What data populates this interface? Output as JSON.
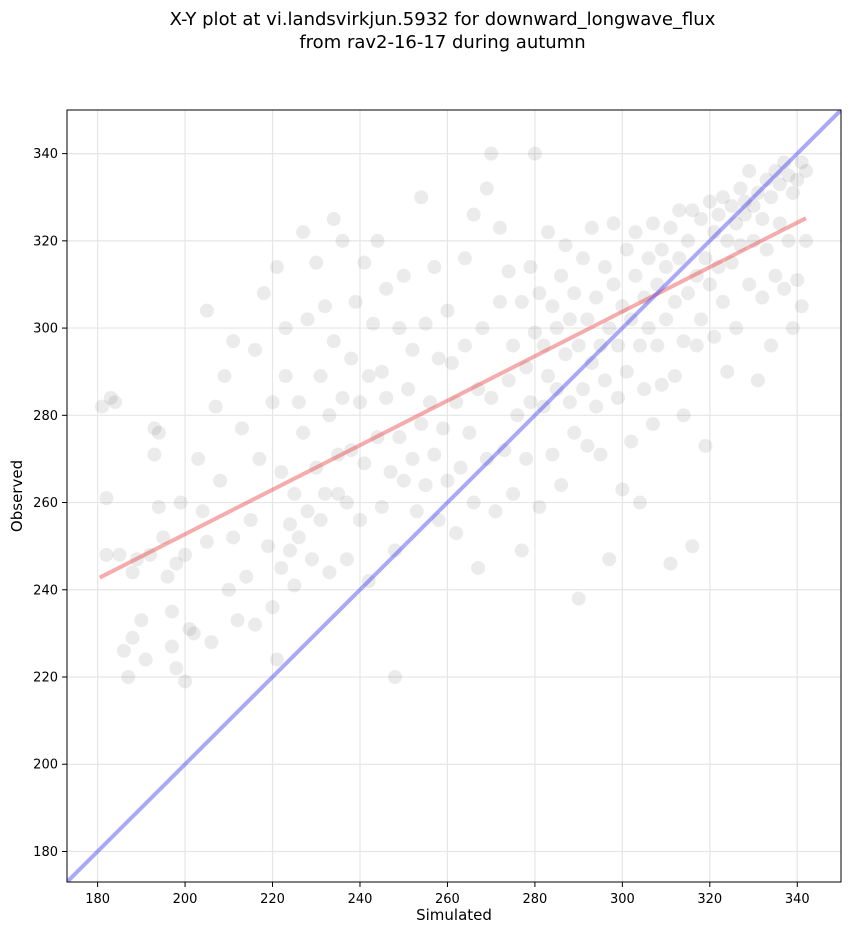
{
  "chart_data": {
    "type": "scatter",
    "title": "X-Y plot at vi.landsvirkjun.5932 for downward_longwave_flux",
    "subtitle": "from rav2-16-17 during autumn",
    "xlabel": "Simulated",
    "ylabel": "Observed",
    "xlim": [
      173,
      350
    ],
    "ylim": [
      173,
      350
    ],
    "xticks": [
      180,
      200,
      220,
      240,
      260,
      280,
      300,
      320,
      340
    ],
    "yticks": [
      180,
      200,
      220,
      240,
      260,
      280,
      300,
      320,
      340
    ],
    "grid": true,
    "point_color": "#000000",
    "point_alpha": 0.08,
    "fit_line": {
      "x": [
        180.5,
        342
      ],
      "y": [
        242.8,
        325.2
      ],
      "color": "#e8484a"
    },
    "identity_line": {
      "x": [
        173,
        350
      ],
      "y": [
        173,
        350
      ],
      "color": "#4040f0"
    },
    "points": [
      [
        181,
        282
      ],
      [
        182,
        248
      ],
      [
        182,
        261
      ],
      [
        183,
        284
      ],
      [
        184,
        283
      ],
      [
        185,
        248
      ],
      [
        186,
        226
      ],
      [
        187,
        220
      ],
      [
        188,
        229
      ],
      [
        188,
        244
      ],
      [
        189,
        247
      ],
      [
        190,
        233
      ],
      [
        191,
        224
      ],
      [
        192,
        248
      ],
      [
        193,
        271
      ],
      [
        193,
        277
      ],
      [
        194,
        276
      ],
      [
        194,
        259
      ],
      [
        195,
        252
      ],
      [
        196,
        243
      ],
      [
        197,
        235
      ],
      [
        197,
        227
      ],
      [
        198,
        222
      ],
      [
        198,
        246
      ],
      [
        199,
        260
      ],
      [
        200,
        248
      ],
      [
        200,
        219
      ],
      [
        201,
        231
      ],
      [
        202,
        230
      ],
      [
        203,
        270
      ],
      [
        204,
        258
      ],
      [
        205,
        251
      ],
      [
        205,
        304
      ],
      [
        206,
        228
      ],
      [
        207,
        282
      ],
      [
        208,
        265
      ],
      [
        209,
        289
      ],
      [
        210,
        240
      ],
      [
        211,
        252
      ],
      [
        211,
        297
      ],
      [
        212,
        233
      ],
      [
        213,
        277
      ],
      [
        214,
        243
      ],
      [
        215,
        256
      ],
      [
        216,
        295
      ],
      [
        216,
        232
      ],
      [
        217,
        270
      ],
      [
        218,
        308
      ],
      [
        219,
        250
      ],
      [
        220,
        236
      ],
      [
        220,
        283
      ],
      [
        221,
        224
      ],
      [
        221,
        314
      ],
      [
        222,
        267
      ],
      [
        222,
        245
      ],
      [
        223,
        300
      ],
      [
        223,
        289
      ],
      [
        224,
        255
      ],
      [
        224,
        249
      ],
      [
        225,
        262
      ],
      [
        225,
        241
      ],
      [
        226,
        252
      ],
      [
        226,
        283
      ],
      [
        227,
        322
      ],
      [
        227,
        276
      ],
      [
        228,
        258
      ],
      [
        228,
        302
      ],
      [
        229,
        247
      ],
      [
        230,
        315
      ],
      [
        230,
        268
      ],
      [
        231,
        289
      ],
      [
        231,
        256
      ],
      [
        232,
        305
      ],
      [
        232,
        262
      ],
      [
        233,
        280
      ],
      [
        233,
        244
      ],
      [
        234,
        325
      ],
      [
        234,
        297
      ],
      [
        235,
        271
      ],
      [
        235,
        262
      ],
      [
        236,
        284
      ],
      [
        236,
        320
      ],
      [
        237,
        247
      ],
      [
        237,
        260
      ],
      [
        238,
        272
      ],
      [
        238,
        293
      ],
      [
        239,
        306
      ],
      [
        240,
        256
      ],
      [
        240,
        283
      ],
      [
        241,
        315
      ],
      [
        241,
        269
      ],
      [
        242,
        289
      ],
      [
        242,
        242
      ],
      [
        243,
        301
      ],
      [
        244,
        275
      ],
      [
        244,
        320
      ],
      [
        245,
        259
      ],
      [
        245,
        290
      ],
      [
        246,
        284
      ],
      [
        246,
        309
      ],
      [
        247,
        267
      ],
      [
        248,
        249
      ],
      [
        248,
        220
      ],
      [
        249,
        300
      ],
      [
        249,
        275
      ],
      [
        250,
        312
      ],
      [
        250,
        265
      ],
      [
        251,
        286
      ],
      [
        252,
        295
      ],
      [
        252,
        270
      ],
      [
        253,
        258
      ],
      [
        254,
        278
      ],
      [
        254,
        330
      ],
      [
        255,
        301
      ],
      [
        255,
        264
      ],
      [
        256,
        283
      ],
      [
        257,
        314
      ],
      [
        257,
        271
      ],
      [
        258,
        293
      ],
      [
        258,
        256
      ],
      [
        259,
        277
      ],
      [
        260,
        304
      ],
      [
        260,
        265
      ],
      [
        261,
        292
      ],
      [
        262,
        253
      ],
      [
        262,
        283
      ],
      [
        263,
        268
      ],
      [
        264,
        316
      ],
      [
        264,
        296
      ],
      [
        265,
        276
      ],
      [
        266,
        260
      ],
      [
        266,
        326
      ],
      [
        267,
        286
      ],
      [
        267,
        245
      ],
      [
        268,
        300
      ],
      [
        269,
        270
      ],
      [
        269,
        332
      ],
      [
        270,
        340
      ],
      [
        270,
        284
      ],
      [
        271,
        258
      ],
      [
        272,
        306
      ],
      [
        272,
        323
      ],
      [
        273,
        272
      ],
      [
        274,
        288
      ],
      [
        274,
        313
      ],
      [
        275,
        296
      ],
      [
        275,
        262
      ],
      [
        276,
        280
      ],
      [
        277,
        249
      ],
      [
        277,
        306
      ],
      [
        278,
        291
      ],
      [
        278,
        270
      ],
      [
        279,
        314
      ],
      [
        279,
        283
      ],
      [
        280,
        299
      ],
      [
        280,
        340
      ],
      [
        281,
        259
      ],
      [
        281,
        308
      ],
      [
        282,
        282
      ],
      [
        282,
        296
      ],
      [
        283,
        322
      ],
      [
        283,
        289
      ],
      [
        284,
        271
      ],
      [
        284,
        305
      ],
      [
        285,
        286
      ],
      [
        285,
        300
      ],
      [
        286,
        264
      ],
      [
        286,
        312
      ],
      [
        287,
        294
      ],
      [
        287,
        319
      ],
      [
        288,
        283
      ],
      [
        288,
        302
      ],
      [
        289,
        276
      ],
      [
        289,
        308
      ],
      [
        290,
        238
      ],
      [
        290,
        296
      ],
      [
        291,
        286
      ],
      [
        291,
        316
      ],
      [
        292,
        302
      ],
      [
        292,
        273
      ],
      [
        293,
        292
      ],
      [
        293,
        323
      ],
      [
        294,
        282
      ],
      [
        294,
        307
      ],
      [
        295,
        296
      ],
      [
        295,
        271
      ],
      [
        296,
        314
      ],
      [
        296,
        288
      ],
      [
        297,
        300
      ],
      [
        297,
        247
      ],
      [
        298,
        324
      ],
      [
        298,
        310
      ],
      [
        299,
        284
      ],
      [
        299,
        296
      ],
      [
        300,
        305
      ],
      [
        300,
        263
      ],
      [
        301,
        318
      ],
      [
        301,
        290
      ],
      [
        302,
        302
      ],
      [
        302,
        274
      ],
      [
        303,
        312
      ],
      [
        303,
        322
      ],
      [
        304,
        296
      ],
      [
        304,
        260
      ],
      [
        305,
        307
      ],
      [
        305,
        286
      ],
      [
        306,
        316
      ],
      [
        306,
        300
      ],
      [
        307,
        324
      ],
      [
        307,
        278
      ],
      [
        308,
        310
      ],
      [
        308,
        296
      ],
      [
        309,
        318
      ],
      [
        309,
        287
      ],
      [
        310,
        302
      ],
      [
        310,
        314
      ],
      [
        311,
        323
      ],
      [
        311,
        246
      ],
      [
        312,
        306
      ],
      [
        312,
        289
      ],
      [
        313,
        316
      ],
      [
        313,
        327
      ],
      [
        314,
        297
      ],
      [
        314,
        280
      ],
      [
        315,
        320
      ],
      [
        315,
        308
      ],
      [
        316,
        327
      ],
      [
        316,
        250
      ],
      [
        317,
        312
      ],
      [
        317,
        296
      ],
      [
        318,
        325
      ],
      [
        318,
        302
      ],
      [
        319,
        316
      ],
      [
        319,
        273
      ],
      [
        320,
        329
      ],
      [
        320,
        310
      ],
      [
        321,
        322
      ],
      [
        321,
        298
      ],
      [
        322,
        326
      ],
      [
        322,
        314
      ],
      [
        323,
        330
      ],
      [
        323,
        306
      ],
      [
        324,
        320
      ],
      [
        324,
        290
      ],
      [
        325,
        328
      ],
      [
        325,
        315
      ],
      [
        326,
        324
      ],
      [
        326,
        300
      ],
      [
        327,
        332
      ],
      [
        327,
        319
      ],
      [
        328,
        329
      ],
      [
        328,
        326
      ],
      [
        329,
        336
      ],
      [
        329,
        310
      ],
      [
        330,
        328
      ],
      [
        330,
        320
      ],
      [
        331,
        331
      ],
      [
        331,
        288
      ],
      [
        332,
        325
      ],
      [
        332,
        307
      ],
      [
        333,
        334
      ],
      [
        333,
        318
      ],
      [
        334,
        330
      ],
      [
        334,
        296
      ],
      [
        335,
        336
      ],
      [
        335,
        312
      ],
      [
        336,
        333
      ],
      [
        336,
        324
      ],
      [
        337,
        338
      ],
      [
        337,
        309
      ],
      [
        338,
        335
      ],
      [
        338,
        320
      ],
      [
        339,
        331
      ],
      [
        339,
        300
      ],
      [
        340,
        334
      ],
      [
        340,
        311
      ],
      [
        341,
        338
      ],
      [
        341,
        305
      ],
      [
        342,
        336
      ],
      [
        342,
        320
      ]
    ]
  }
}
